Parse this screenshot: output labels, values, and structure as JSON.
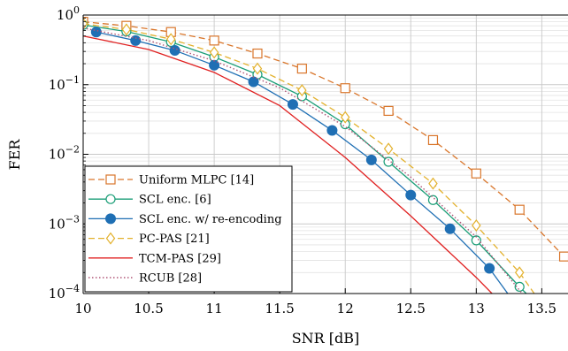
{
  "chart_data": {
    "type": "line",
    "xlabel": "SNR [dB]",
    "ylabel": "FER",
    "xlim": [
      10,
      13.7
    ],
    "ylim": [
      0.0001,
      1
    ],
    "yscale": "log",
    "xticks": [
      10,
      10.5,
      11,
      11.5,
      12,
      12.5,
      13,
      13.5
    ],
    "xtick_labels": [
      "10",
      "10.5",
      "11",
      "11.5",
      "12",
      "12.5",
      "13",
      "13.5"
    ],
    "yticks": [
      1,
      0.1,
      0.01,
      0.001,
      0.0001
    ],
    "ytick_labels": [
      {
        "base": "10",
        "exp": "0"
      },
      {
        "base": "10",
        "exp": "−1"
      },
      {
        "base": "10",
        "exp": "−2"
      },
      {
        "base": "10",
        "exp": "−3"
      },
      {
        "base": "10",
        "exp": "−4"
      }
    ],
    "grid": true,
    "legend_position": "bottom-left",
    "series": [
      {
        "name": "Uniform MLPC [14]",
        "color": "#d9762b",
        "dash": "dashed",
        "marker": "square",
        "x": [
          10.0,
          10.33,
          10.67,
          11.0,
          11.33,
          11.67,
          12.0,
          12.33,
          12.67,
          13.0,
          13.33,
          13.67
        ],
        "y": [
          0.8,
          0.7,
          0.57,
          0.43,
          0.28,
          0.17,
          0.089,
          0.042,
          0.016,
          0.0053,
          0.0016,
          0.00034
        ]
      },
      {
        "name": "SCL enc. [6]",
        "color": "#1a9e77",
        "dash": "solid",
        "marker": "circle",
        "x": [
          10.0,
          10.33,
          10.67,
          11.0,
          11.33,
          11.67,
          12.0,
          12.33,
          12.67,
          13.0,
          13.33,
          13.5
        ],
        "y": [
          0.72,
          0.58,
          0.41,
          0.25,
          0.14,
          0.068,
          0.027,
          0.0078,
          0.0022,
          0.00058,
          0.000125,
          6e-05
        ]
      },
      {
        "name": "SCL enc. w/ re-encoding",
        "color": "#1f6fb4",
        "dash": "solid",
        "marker": "filled-circle",
        "x": [
          10.1,
          10.4,
          10.7,
          11.0,
          11.3,
          11.6,
          11.9,
          12.2,
          12.5,
          12.8,
          13.1,
          13.3
        ],
        "y": [
          0.57,
          0.43,
          0.31,
          0.19,
          0.11,
          0.052,
          0.022,
          0.0083,
          0.0026,
          0.00085,
          0.00023,
          7e-05
        ]
      },
      {
        "name": "PC-PAS [21]",
        "color": "#e3b12d",
        "dash": "dashed",
        "marker": "diamond",
        "x": [
          10.0,
          10.33,
          10.67,
          11.0,
          11.33,
          11.67,
          12.0,
          12.33,
          12.67,
          13.0,
          13.33,
          13.5
        ],
        "y": [
          0.75,
          0.62,
          0.45,
          0.29,
          0.17,
          0.083,
          0.034,
          0.012,
          0.0038,
          0.00095,
          0.0002,
          7e-05
        ]
      },
      {
        "name": "TCM-PAS [29]",
        "color": "#e02020",
        "dash": "solid",
        "marker": "none",
        "x": [
          10.0,
          10.5,
          11.0,
          11.5,
          12.0,
          12.5,
          13.0,
          13.12
        ],
        "y": [
          0.5,
          0.32,
          0.15,
          0.05,
          0.009,
          0.0013,
          0.00017,
          0.0001
        ]
      },
      {
        "name": "RCUB [28]",
        "color": "#b05577",
        "dash": "dotted",
        "marker": "none",
        "x": [
          10.0,
          10.5,
          11.0,
          11.5,
          12.0,
          12.5,
          13.0,
          13.35
        ],
        "y": [
          0.65,
          0.43,
          0.22,
          0.09,
          0.025,
          0.0047,
          0.00065,
          0.0001
        ]
      }
    ]
  }
}
